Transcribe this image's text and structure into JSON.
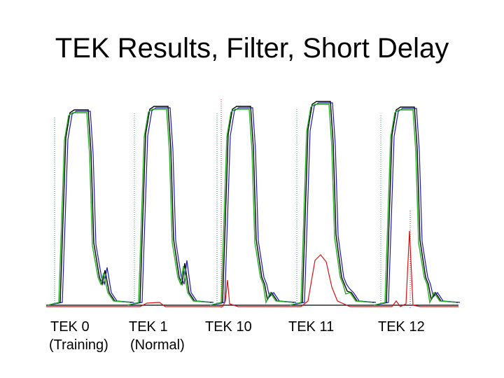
{
  "slide": {
    "title": "TEK Results, Filter, Short Delay"
  },
  "chart_data": {
    "type": "line",
    "title": "TEK Results, Filter, Short Delay",
    "xlabel": "",
    "ylabel": "",
    "grid": false,
    "legend": "none",
    "groups": [
      {
        "label": "TEK 0",
        "sublabel": "(Training)"
      },
      {
        "label": "TEK 1",
        "sublabel": "(Normal)"
      },
      {
        "label": "TEK 10",
        "sublabel": ""
      },
      {
        "label": "TEK 11",
        "sublabel": ""
      },
      {
        "label": "TEK 12",
        "sublabel": ""
      }
    ],
    "series_colors": {
      "black": "#000000",
      "blue": "#1a1aa8",
      "green": "#20b020",
      "red": "#d81010",
      "dotted": "#3a8a6a"
    }
  }
}
